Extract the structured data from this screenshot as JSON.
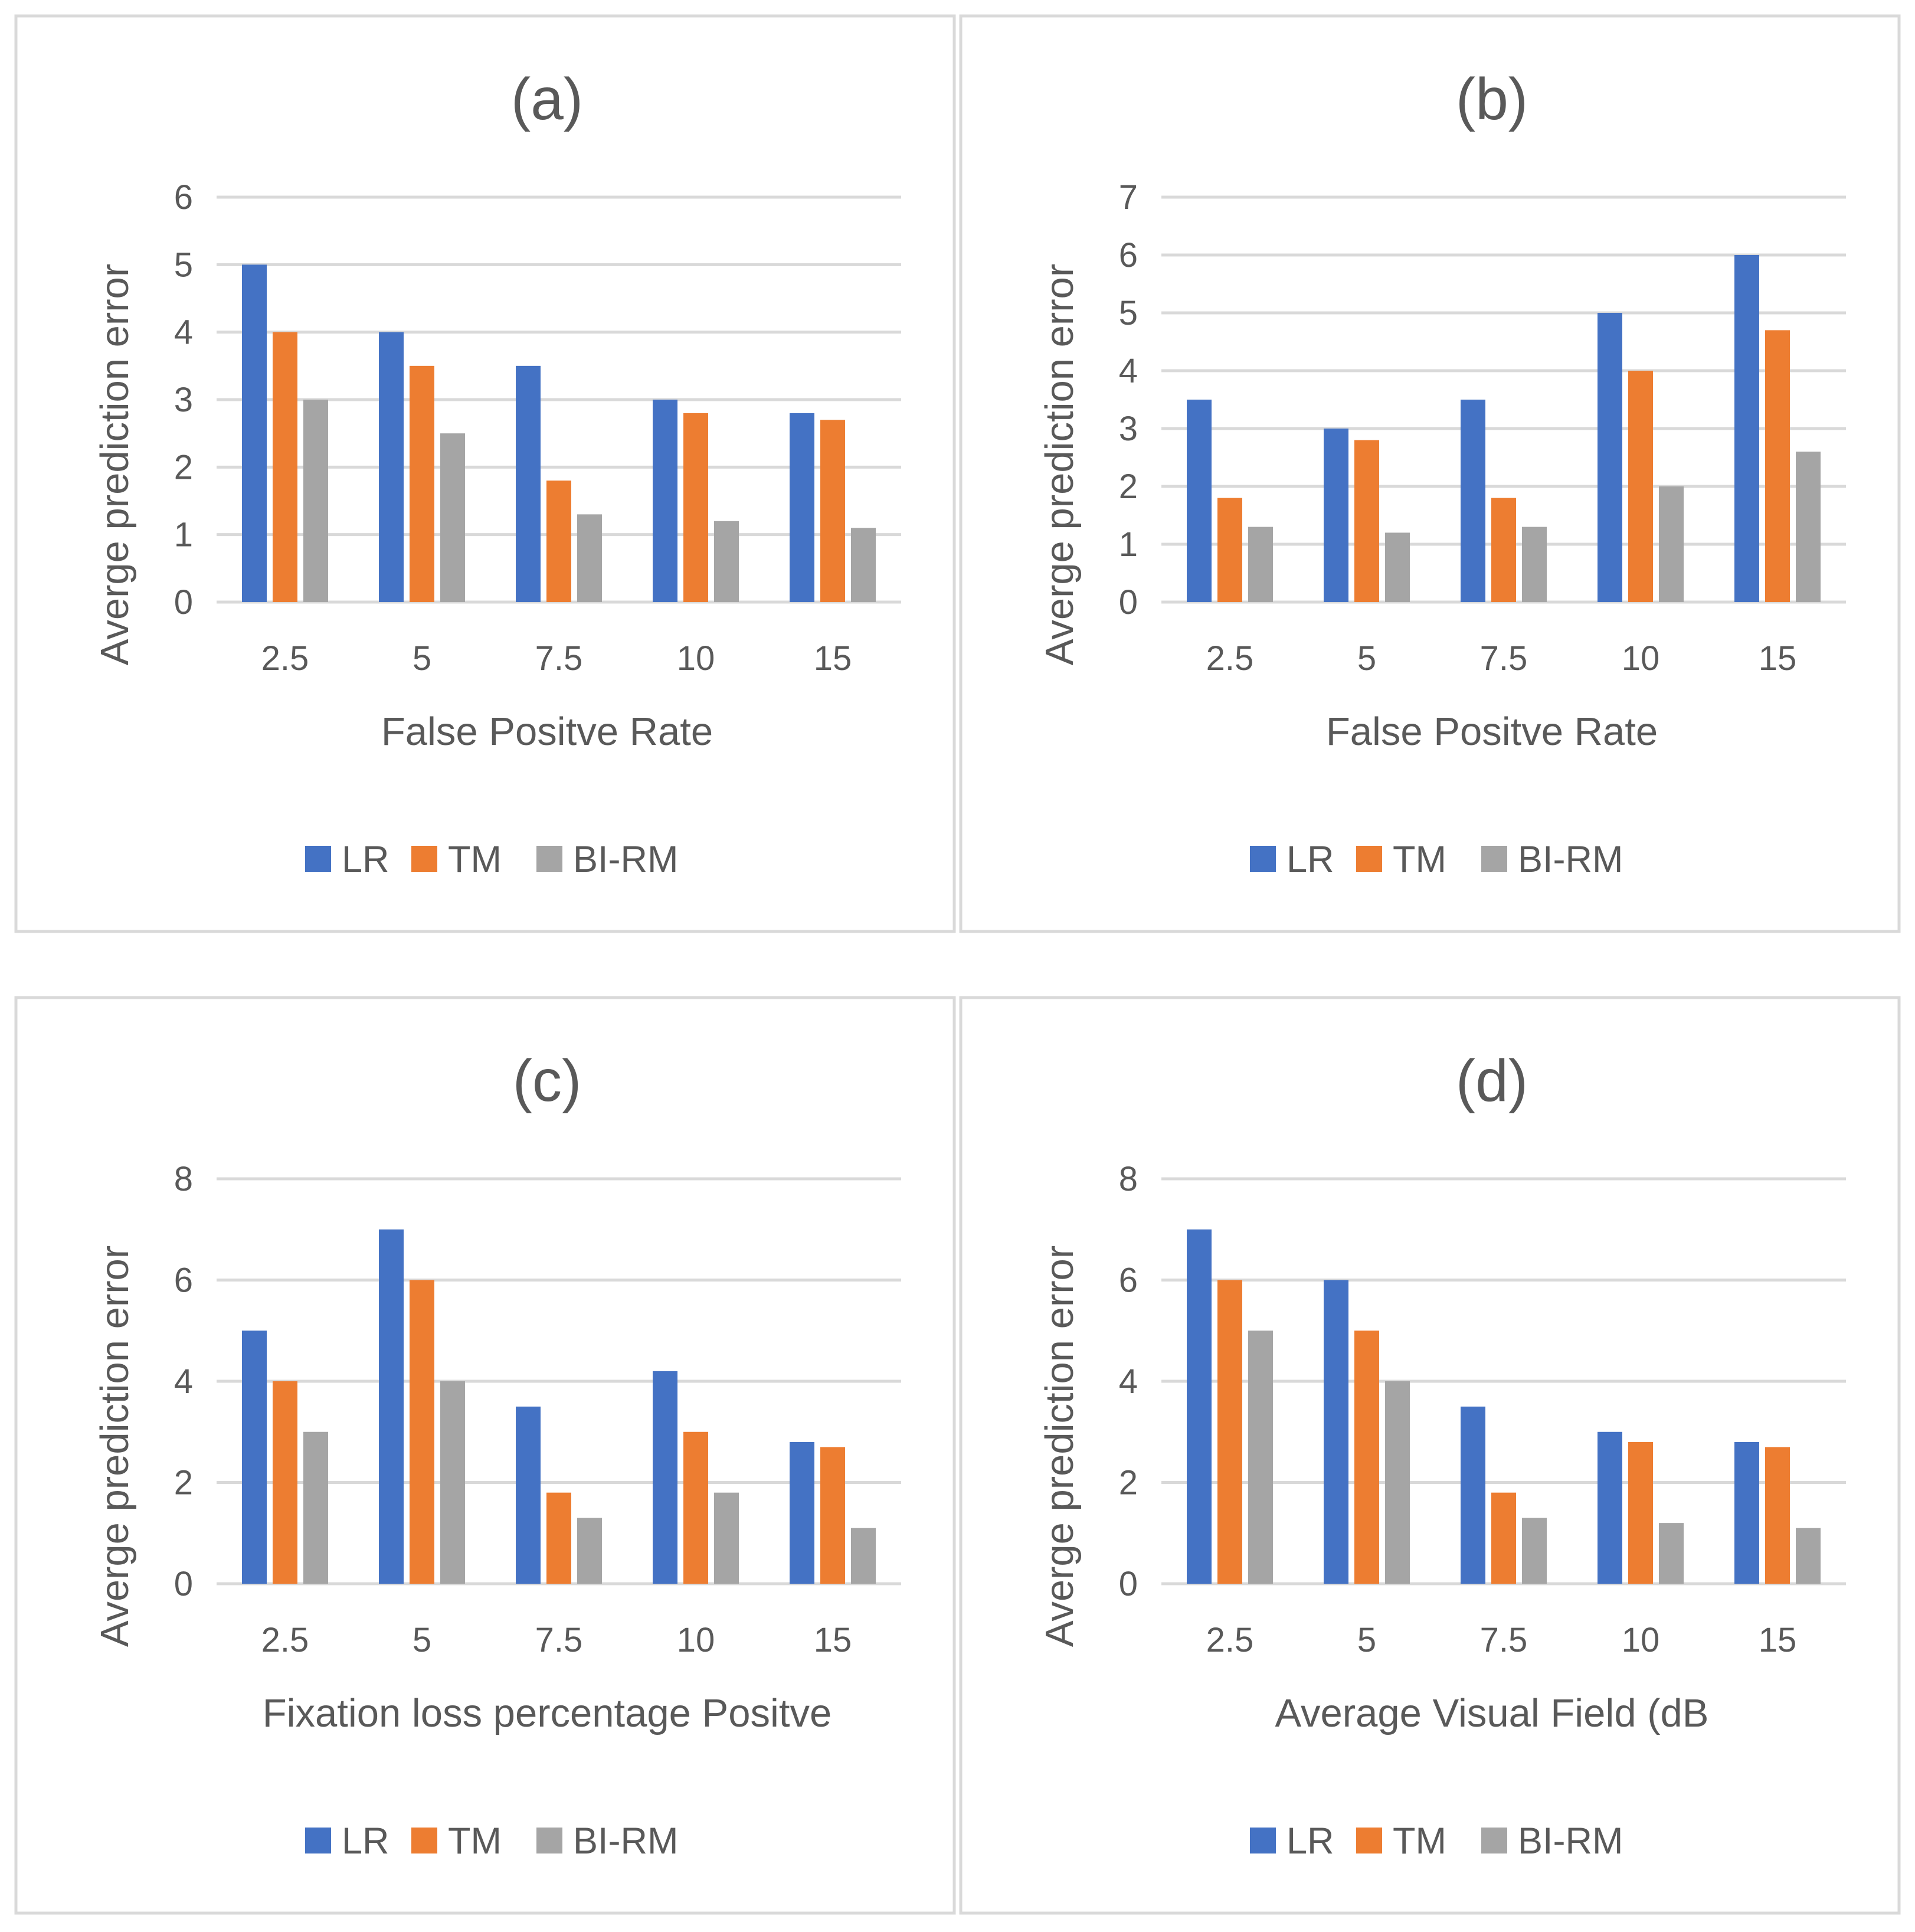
{
  "figure": {
    "colors": {
      "LR": "#4472c4",
      "TM": "#ed7d31",
      "BI-RM": "#a5a5a5"
    }
  },
  "chart_data": [
    {
      "type": "bar",
      "title": "(a)",
      "xlabel": "False Positve Rate",
      "ylabel": "Averge  prediction error",
      "categories": [
        "2.5",
        "5",
        "7.5",
        "10",
        "15"
      ],
      "ylim": [
        0,
        6
      ],
      "yticks": [
        "0",
        "1",
        "2",
        "3",
        "4",
        "5",
        "6"
      ],
      "legend_position": "bottom",
      "series": [
        {
          "name": "LR",
          "values": [
            5,
            4,
            3.5,
            3,
            2.8
          ]
        },
        {
          "name": "TM",
          "values": [
            4,
            3.5,
            1.8,
            2.8,
            2.7
          ]
        },
        {
          "name": "BI-RM",
          "values": [
            3,
            2.5,
            1.3,
            1.2,
            1.1
          ]
        }
      ]
    },
    {
      "type": "bar",
      "title": "(b)",
      "xlabel": "False Positve Rate",
      "ylabel": "Averge  prediction error",
      "categories": [
        "2.5",
        "5",
        "7.5",
        "10",
        "15"
      ],
      "ylim": [
        0,
        7
      ],
      "yticks": [
        "0",
        "1",
        "2",
        "3",
        "4",
        "5",
        "6",
        "7"
      ],
      "legend_position": "bottom",
      "series": [
        {
          "name": "LR",
          "values": [
            3.5,
            3,
            3.5,
            5,
            6
          ]
        },
        {
          "name": "TM",
          "values": [
            1.8,
            2.8,
            1.8,
            4,
            4.7
          ]
        },
        {
          "name": "BI-RM",
          "values": [
            1.3,
            1.2,
            1.3,
            2,
            2.6
          ]
        }
      ]
    },
    {
      "type": "bar",
      "title": "(c)",
      "xlabel": "Fixation loss percentage Positve",
      "ylabel": "Averge  prediction error",
      "categories": [
        "2.5",
        "5",
        "7.5",
        "10",
        "15"
      ],
      "ylim": [
        0,
        8
      ],
      "yticks": [
        "0",
        "2",
        "4",
        "6",
        "8"
      ],
      "legend_position": "bottom",
      "series": [
        {
          "name": "LR",
          "values": [
            5,
            7,
            3.5,
            4.2,
            2.8
          ]
        },
        {
          "name": "TM",
          "values": [
            4,
            6,
            1.8,
            3,
            2.7
          ]
        },
        {
          "name": "BI-RM",
          "values": [
            3,
            4,
            1.3,
            1.8,
            1.1
          ]
        }
      ]
    },
    {
      "type": "bar",
      "title": "(d)",
      "xlabel": "Average Visual Field (dB",
      "ylabel": "Averge  prediction error",
      "categories": [
        "2.5",
        "5",
        "7.5",
        "10",
        "15"
      ],
      "ylim": [
        0,
        8
      ],
      "yticks": [
        "0",
        "2",
        "4",
        "6",
        "8"
      ],
      "legend_position": "bottom",
      "series": [
        {
          "name": "LR",
          "values": [
            7,
            6,
            3.5,
            3,
            2.8
          ]
        },
        {
          "name": "TM",
          "values": [
            6,
            5,
            1.8,
            2.8,
            2.7
          ]
        },
        {
          "name": "BI-RM",
          "values": [
            5,
            4,
            1.3,
            1.2,
            1.1
          ]
        }
      ]
    }
  ]
}
